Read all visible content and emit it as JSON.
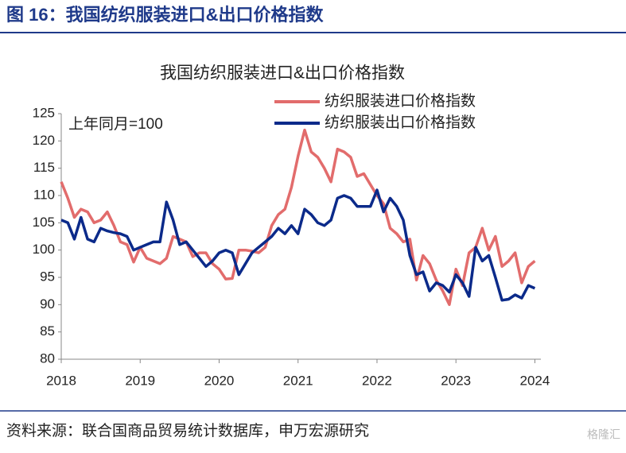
{
  "header": "图 16：我国纺织服装进口&出口价格指数",
  "source": "资料来源：联合国商品贸易统计数据库，申万宏源研究",
  "watermark": "格隆汇",
  "chart_data": {
    "type": "line",
    "title": "我国纺织服装进口&出口价格指数",
    "annotation": "上年同月=100",
    "categories": [
      "2018",
      null,
      null,
      null,
      null,
      null,
      null,
      null,
      null,
      null,
      null,
      null,
      "2019",
      null,
      null,
      null,
      null,
      null,
      null,
      null,
      null,
      null,
      null,
      null,
      "2020",
      null,
      null,
      null,
      null,
      null,
      null,
      null,
      null,
      null,
      null,
      null,
      "2021",
      null,
      null,
      null,
      null,
      null,
      null,
      null,
      null,
      null,
      null,
      null,
      "2022",
      null,
      null,
      null,
      null,
      null,
      null,
      null,
      null,
      null,
      null,
      null,
      "2023",
      null,
      null,
      null,
      null,
      null,
      null,
      null,
      null,
      null,
      null,
      null,
      "2024"
    ],
    "series": [
      {
        "name": "纺织服装进口价格指数",
        "color": "#e26c6c",
        "values": [
          112.5,
          109.5,
          106,
          107.5,
          107,
          105,
          105.5,
          107,
          104.5,
          101.5,
          101,
          97.8,
          100.5,
          98.5,
          98,
          97.5,
          98.5,
          102.5,
          102,
          101.5,
          98.8,
          99.5,
          99.5,
          97.5,
          96.5,
          94.7,
          94.8,
          100,
          100,
          99.8,
          99.5,
          100.5,
          104.5,
          106.5,
          107.5,
          111.5,
          117.2,
          122,
          118,
          117,
          115,
          112.5,
          118.5,
          118,
          117,
          113.5,
          114,
          112,
          110,
          108.5,
          104,
          103,
          101.5,
          102,
          94.5,
          99,
          97.5,
          94.5,
          92.5,
          90,
          96.5,
          93.5,
          99.5,
          100.5,
          104,
          100,
          102.5,
          97,
          98,
          99.5,
          94,
          97,
          98
        ]
      },
      {
        "name": "纺织服装出口价格指数",
        "color": "#0b2a8a",
        "values": [
          105.5,
          105,
          102,
          106,
          102,
          101.5,
          104,
          103.5,
          103.2,
          103,
          102.5,
          100,
          100.5,
          101,
          101.5,
          101.5,
          108.8,
          105.5,
          101,
          101.5,
          100,
          98.5,
          97,
          98,
          99.5,
          100,
          99.5,
          95.5,
          97.5,
          99.5,
          100.5,
          101.5,
          102.5,
          104,
          103,
          104.5,
          103,
          107.5,
          106.5,
          105,
          104.5,
          105.5,
          109.5,
          110,
          109.5,
          108,
          108,
          108,
          111,
          107,
          109.5,
          108,
          105.5,
          99,
          95.5,
          96,
          92.5,
          94,
          93.5,
          92.3,
          95.5,
          94,
          91.5,
          100.5,
          98,
          99,
          95,
          90.8,
          91,
          91.8,
          91.2,
          93.5,
          93
        ]
      }
    ],
    "ylim": [
      80,
      125
    ],
    "yticks": [
      80,
      85,
      90,
      95,
      100,
      105,
      110,
      115,
      120,
      125
    ],
    "grid": false,
    "legend": "top-right"
  }
}
